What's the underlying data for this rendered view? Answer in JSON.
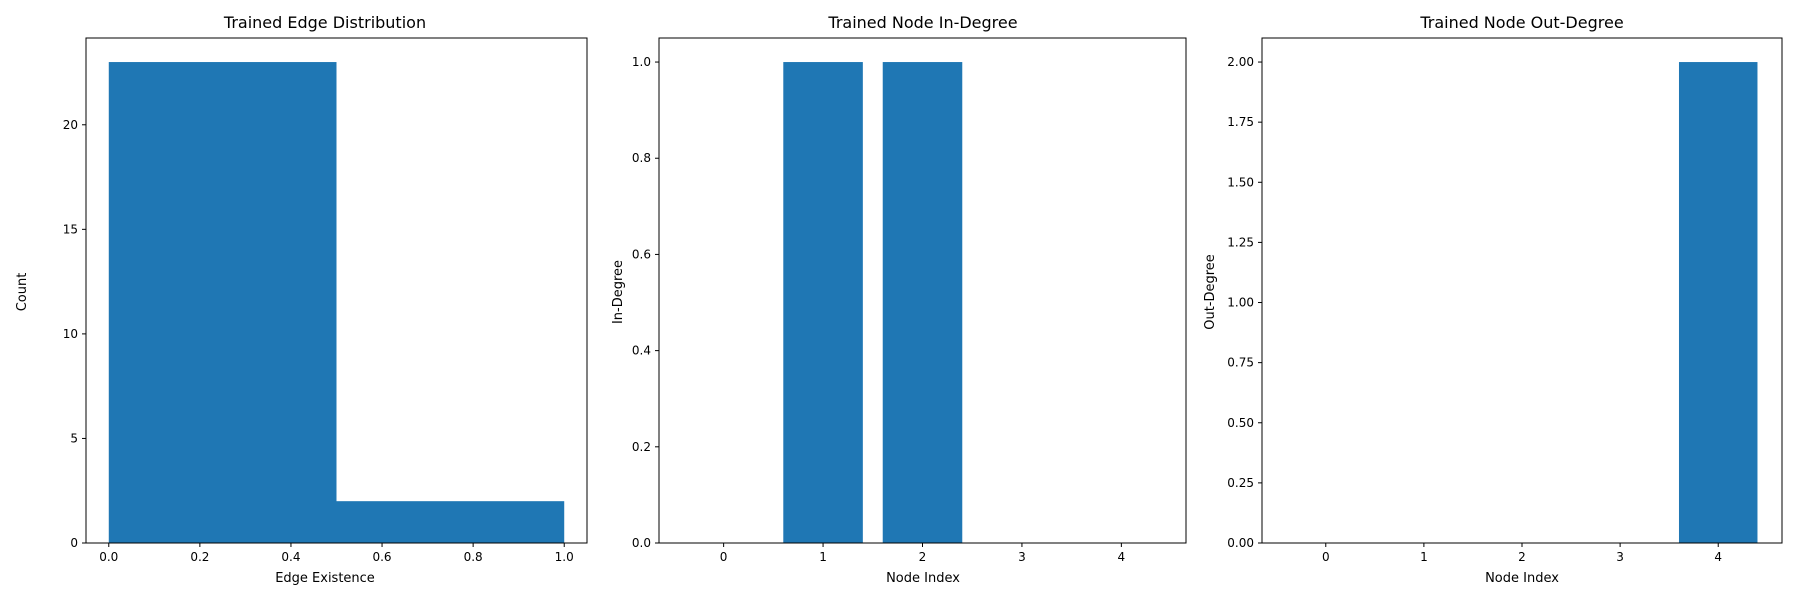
{
  "chart_data": [
    {
      "type": "bar",
      "title": "Trained Edge Distribution",
      "xlabel": "Edge Existence",
      "ylabel": "Count",
      "bins": [
        {
          "x0": 0.0,
          "x1": 0.5,
          "value": 23
        },
        {
          "x0": 0.5,
          "x1": 1.0,
          "value": 2
        }
      ],
      "xlim": [
        -0.05,
        1.05
      ],
      "ylim": [
        0,
        24.15
      ],
      "xticks": [
        0.0,
        0.2,
        0.4,
        0.6,
        0.8,
        1.0
      ],
      "xtick_labels": [
        "0.0",
        "0.2",
        "0.4",
        "0.6",
        "0.8",
        "1.0"
      ],
      "yticks": [
        0,
        5,
        10,
        15,
        20
      ],
      "ytick_labels": [
        "0",
        "5",
        "10",
        "15",
        "20"
      ],
      "bar_color": "#1f77b4",
      "grid": false
    },
    {
      "type": "bar",
      "title": "Trained Node In-Degree",
      "xlabel": "Node Index",
      "ylabel": "In-Degree",
      "categories": [
        0,
        1,
        2,
        3,
        4
      ],
      "values": [
        0,
        1,
        1,
        0,
        0
      ],
      "bar_width": 0.8,
      "xlim": [
        -0.65,
        4.65
      ],
      "ylim": [
        0,
        1.05
      ],
      "xticks": [
        0,
        1,
        2,
        3,
        4
      ],
      "xtick_labels": [
        "0",
        "1",
        "2",
        "3",
        "4"
      ],
      "yticks": [
        0,
        0.2,
        0.4,
        0.6,
        0.8,
        1.0
      ],
      "ytick_labels": [
        "0.0",
        "0.2",
        "0.4",
        "0.6",
        "0.8",
        "1.0"
      ],
      "bar_color": "#1f77b4",
      "grid": false
    },
    {
      "type": "bar",
      "title": "Trained Node Out-Degree",
      "xlabel": "Node Index",
      "ylabel": "Out-Degree",
      "categories": [
        0,
        1,
        2,
        3,
        4
      ],
      "values": [
        0,
        0,
        0,
        0,
        2
      ],
      "bar_width": 0.8,
      "xlim": [
        -0.65,
        4.65
      ],
      "ylim": [
        0,
        2.1
      ],
      "xticks": [
        0,
        1,
        2,
        3,
        4
      ],
      "xtick_labels": [
        "0",
        "1",
        "2",
        "3",
        "4"
      ],
      "yticks": [
        0,
        0.25,
        0.5,
        0.75,
        1.0,
        1.25,
        1.5,
        1.75,
        2.0
      ],
      "ytick_labels": [
        "0.00",
        "0.25",
        "0.50",
        "0.75",
        "1.00",
        "1.25",
        "1.50",
        "1.75",
        "2.00"
      ],
      "bar_color": "#1f77b4",
      "grid": false
    }
  ]
}
